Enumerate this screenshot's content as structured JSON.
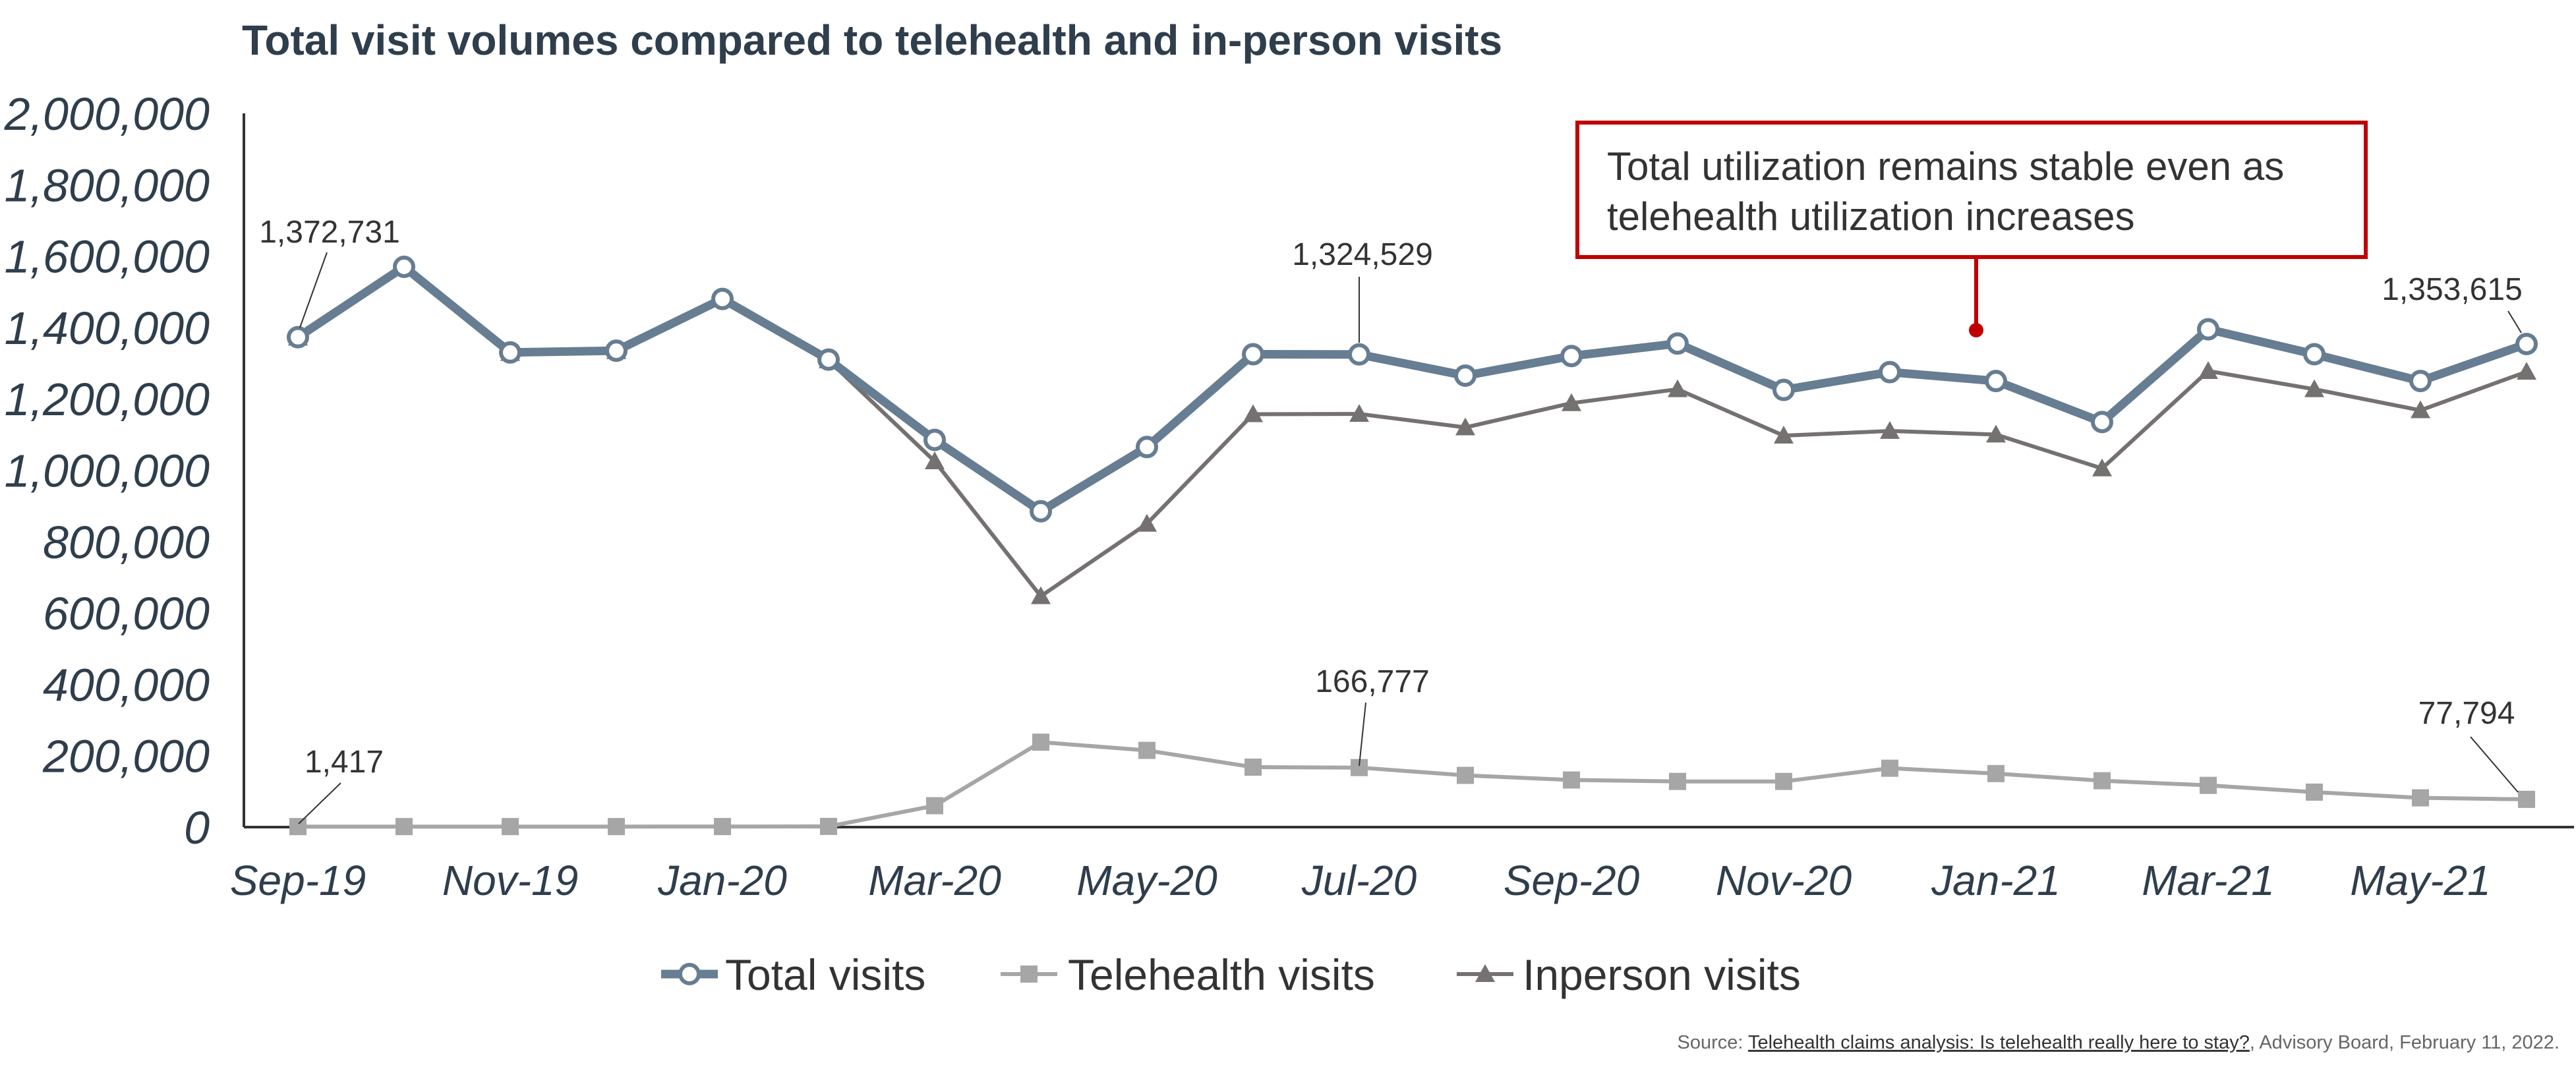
{
  "chart_data": {
    "type": "line",
    "title": "Total visit volumes compared to telehealth and in-person visits",
    "xlabel": "",
    "ylabel": "",
    "ylim": [
      0,
      2000000
    ],
    "yticks": [
      0,
      200000,
      400000,
      600000,
      800000,
      1000000,
      1200000,
      1400000,
      1600000,
      1800000,
      2000000
    ],
    "ytick_labels": [
      "0",
      "200,000",
      "400,000",
      "600,000",
      "800,000",
      "1,000,000",
      "1,200,000",
      "1,400,000",
      "1,600,000",
      "1,800,000",
      "2,000,000"
    ],
    "categories": [
      "Sep-19",
      "Oct-19",
      "Nov-19",
      "Dec-19",
      "Jan-20",
      "Feb-20",
      "Mar-20",
      "Apr-20",
      "May-20",
      "Jun-20",
      "Jul-20",
      "Aug-20",
      "Sep-20",
      "Oct-20",
      "Nov-20",
      "Dec-20",
      "Jan-21",
      "Feb-21",
      "Mar-21",
      "Apr-21",
      "May-21",
      "Jun-21"
    ],
    "xtick_labels": [
      "Sep-19",
      "",
      "Nov-19",
      "",
      "Jan-20",
      "",
      "Mar-20",
      "",
      "May-20",
      "",
      "Jul-20",
      "",
      "Sep-20",
      "",
      "Nov-20",
      "",
      "Jan-21",
      "",
      "Mar-21",
      "",
      "May-21",
      ""
    ],
    "grid": false,
    "legend_position": "bottom",
    "series": [
      {
        "name": "Total visits",
        "color": "#667d92",
        "marker": "circle",
        "values": [
          1372731,
          1570000,
          1330000,
          1335000,
          1480000,
          1310000,
          1085000,
          885000,
          1065000,
          1325000,
          1324529,
          1265000,
          1320000,
          1355000,
          1225000,
          1275000,
          1250000,
          1135000,
          1395000,
          1325000,
          1250000,
          1353615
        ]
      },
      {
        "name": "Telehealth visits",
        "color": "#a6a6a6",
        "marker": "square",
        "values": [
          1417,
          1500,
          1500,
          1500,
          1600,
          2000,
          60000,
          238000,
          215000,
          168000,
          166777,
          145000,
          132000,
          128000,
          128000,
          165000,
          150000,
          130000,
          117000,
          98000,
          82000,
          77794
        ]
      },
      {
        "name": "Inperson visits",
        "color": "#767171",
        "marker": "triangle",
        "values": [
          1371314,
          1568500,
          1328500,
          1333500,
          1478400,
          1308000,
          1025000,
          647000,
          850000,
          1157000,
          1157752,
          1120000,
          1188000,
          1227000,
          1097000,
          1110000,
          1100000,
          1005000,
          1278000,
          1227000,
          1168000,
          1275821
        ]
      }
    ],
    "annotations": [
      {
        "series": 0,
        "index": 0,
        "text": "1,372,731"
      },
      {
        "series": 0,
        "index": 10,
        "text": "1,324,529"
      },
      {
        "series": 0,
        "index": 21,
        "text": "1,353,615"
      },
      {
        "series": 1,
        "index": 0,
        "text": "1,417"
      },
      {
        "series": 1,
        "index": 10,
        "text": "166,777"
      },
      {
        "series": 1,
        "index": 21,
        "text": "77,794"
      }
    ],
    "callout": {
      "lines": [
        "Total utilization remains stable even as",
        "telehealth utilization increases"
      ],
      "border_color": "#c00000"
    }
  },
  "source": {
    "prefix": "Source: ",
    "link_text": "Telehealth claims analysis: Is telehealth really here to stay?",
    "suffix": ", Advisory Board, February 11, 2022."
  }
}
